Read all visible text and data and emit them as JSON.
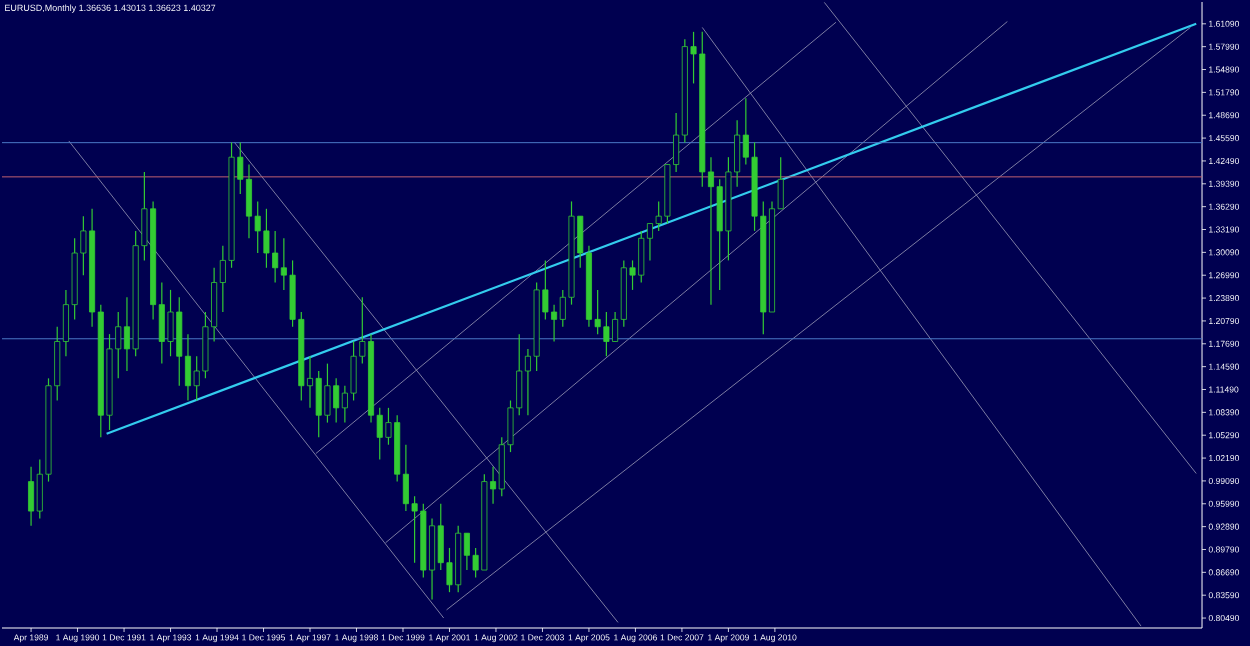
{
  "chart_data": {
    "type": "candlestick",
    "title": "EURUSD,Monthly  1.36636 1.43013 1.36623 1.40327",
    "color": "#33cc33",
    "x": [
      "1989-04",
      "1989-07",
      "1989-10",
      "1990-01",
      "1990-04",
      "1990-07",
      "1990-10",
      "1991-01",
      "1991-04",
      "1991-07",
      "1991-10",
      "1992-01",
      "1992-04",
      "1992-07",
      "1992-10",
      "1993-01",
      "1993-04",
      "1993-07",
      "1993-10",
      "1994-01",
      "1994-04",
      "1994-07",
      "1994-10",
      "1995-01",
      "1995-04",
      "1995-07",
      "1995-10",
      "1996-01",
      "1996-04",
      "1996-07",
      "1996-10",
      "1997-01",
      "1997-04",
      "1997-07",
      "1997-10",
      "1998-01",
      "1998-04",
      "1998-07",
      "1998-10",
      "1999-01",
      "1999-04",
      "1999-07",
      "1999-10",
      "2000-01",
      "2000-04",
      "2000-07",
      "2000-10",
      "2001-01",
      "2001-04",
      "2001-07",
      "2001-10",
      "2002-01",
      "2002-04",
      "2002-07",
      "2002-10",
      "2003-01",
      "2003-04",
      "2003-07",
      "2003-10",
      "2004-01",
      "2004-04",
      "2004-07",
      "2004-10",
      "2005-01",
      "2005-04",
      "2005-07",
      "2005-10",
      "2006-01",
      "2006-04",
      "2006-07",
      "2006-10",
      "2007-01",
      "2007-04",
      "2007-07",
      "2007-10",
      "2008-01",
      "2008-04",
      "2008-07",
      "2008-10",
      "2009-01",
      "2009-04",
      "2009-07",
      "2009-10",
      "2010-01",
      "2010-04",
      "2010-07",
      "2010-10"
    ],
    "ohlc": [
      [
        0.99,
        1.01,
        0.93,
        0.95
      ],
      [
        0.95,
        1.02,
        0.94,
        1.0
      ],
      [
        1.0,
        1.13,
        0.99,
        1.12
      ],
      [
        1.12,
        1.2,
        1.1,
        1.18
      ],
      [
        1.18,
        1.25,
        1.16,
        1.23
      ],
      [
        1.23,
        1.32,
        1.21,
        1.3
      ],
      [
        1.3,
        1.35,
        1.27,
        1.33
      ],
      [
        1.33,
        1.36,
        1.2,
        1.22
      ],
      [
        1.22,
        1.23,
        1.05,
        1.08
      ],
      [
        1.08,
        1.19,
        1.06,
        1.17
      ],
      [
        1.17,
        1.22,
        1.13,
        1.2
      ],
      [
        1.2,
        1.24,
        1.14,
        1.17
      ],
      [
        1.17,
        1.33,
        1.16,
        1.31
      ],
      [
        1.31,
        1.41,
        1.29,
        1.36
      ],
      [
        1.36,
        1.37,
        1.21,
        1.23
      ],
      [
        1.23,
        1.26,
        1.15,
        1.18
      ],
      [
        1.18,
        1.25,
        1.16,
        1.22
      ],
      [
        1.22,
        1.24,
        1.12,
        1.16
      ],
      [
        1.16,
        1.19,
        1.1,
        1.12
      ],
      [
        1.12,
        1.16,
        1.1,
        1.14
      ],
      [
        1.14,
        1.22,
        1.13,
        1.2
      ],
      [
        1.2,
        1.28,
        1.18,
        1.26
      ],
      [
        1.26,
        1.31,
        1.22,
        1.29
      ],
      [
        1.29,
        1.45,
        1.28,
        1.43
      ],
      [
        1.43,
        1.45,
        1.38,
        1.4
      ],
      [
        1.4,
        1.42,
        1.32,
        1.35
      ],
      [
        1.35,
        1.37,
        1.3,
        1.33
      ],
      [
        1.33,
        1.36,
        1.28,
        1.3
      ],
      [
        1.3,
        1.33,
        1.26,
        1.28
      ],
      [
        1.28,
        1.32,
        1.25,
        1.27
      ],
      [
        1.27,
        1.29,
        1.2,
        1.21
      ],
      [
        1.21,
        1.22,
        1.1,
        1.12
      ],
      [
        1.12,
        1.16,
        1.09,
        1.13
      ],
      [
        1.13,
        1.14,
        1.05,
        1.08
      ],
      [
        1.08,
        1.15,
        1.07,
        1.12
      ],
      [
        1.12,
        1.13,
        1.07,
        1.09
      ],
      [
        1.09,
        1.12,
        1.07,
        1.11
      ],
      [
        1.11,
        1.18,
        1.1,
        1.16
      ],
      [
        1.16,
        1.24,
        1.15,
        1.18
      ],
      [
        1.18,
        1.19,
        1.07,
        1.08
      ],
      [
        1.08,
        1.09,
        1.02,
        1.05
      ],
      [
        1.05,
        1.09,
        1.04,
        1.07
      ],
      [
        1.07,
        1.08,
        0.99,
        1.0
      ],
      [
        1.0,
        1.04,
        0.95,
        0.96
      ],
      [
        0.96,
        0.97,
        0.88,
        0.95
      ],
      [
        0.95,
        0.96,
        0.86,
        0.87
      ],
      [
        0.87,
        0.94,
        0.83,
        0.93
      ],
      [
        0.93,
        0.96,
        0.87,
        0.88
      ],
      [
        0.88,
        0.9,
        0.84,
        0.85
      ],
      [
        0.85,
        0.93,
        0.84,
        0.92
      ],
      [
        0.92,
        0.92,
        0.87,
        0.89
      ],
      [
        0.89,
        0.9,
        0.86,
        0.87
      ],
      [
        0.87,
        1.0,
        0.87,
        0.99
      ],
      [
        0.99,
        1.01,
        0.96,
        0.98
      ],
      [
        0.98,
        1.05,
        0.97,
        1.04
      ],
      [
        1.04,
        1.1,
        1.03,
        1.09
      ],
      [
        1.09,
        1.19,
        1.08,
        1.14
      ],
      [
        1.14,
        1.17,
        1.08,
        1.16
      ],
      [
        1.16,
        1.26,
        1.14,
        1.25
      ],
      [
        1.25,
        1.29,
        1.21,
        1.22
      ],
      [
        1.22,
        1.23,
        1.18,
        1.21
      ],
      [
        1.21,
        1.25,
        1.2,
        1.24
      ],
      [
        1.24,
        1.37,
        1.23,
        1.35
      ],
      [
        1.35,
        1.35,
        1.28,
        1.3
      ],
      [
        1.3,
        1.31,
        1.2,
        1.21
      ],
      [
        1.21,
        1.25,
        1.19,
        1.2
      ],
      [
        1.2,
        1.22,
        1.16,
        1.18
      ],
      [
        1.18,
        1.22,
        1.18,
        1.21
      ],
      [
        1.21,
        1.29,
        1.2,
        1.28
      ],
      [
        1.28,
        1.29,
        1.25,
        1.27
      ],
      [
        1.27,
        1.33,
        1.26,
        1.32
      ],
      [
        1.32,
        1.34,
        1.29,
        1.34
      ],
      [
        1.34,
        1.37,
        1.33,
        1.35
      ],
      [
        1.35,
        1.42,
        1.34,
        1.42
      ],
      [
        1.42,
        1.49,
        1.41,
        1.46
      ],
      [
        1.46,
        1.59,
        1.45,
        1.58
      ],
      [
        1.58,
        1.6,
        1.53,
        1.57
      ],
      [
        1.57,
        1.6,
        1.39,
        1.41
      ],
      [
        1.41,
        1.43,
        1.23,
        1.39
      ],
      [
        1.39,
        1.4,
        1.25,
        1.33
      ],
      [
        1.33,
        1.43,
        1.29,
        1.41
      ],
      [
        1.41,
        1.48,
        1.39,
        1.46
      ],
      [
        1.46,
        1.51,
        1.42,
        1.43
      ],
      [
        1.43,
        1.45,
        1.33,
        1.35
      ],
      [
        1.35,
        1.37,
        1.19,
        1.22
      ],
      [
        1.22,
        1.37,
        1.22,
        1.36
      ],
      [
        1.36,
        1.43,
        1.36,
        1.4
      ]
    ],
    "series": [
      {
        "type": "line",
        "color": "#9a9ab8",
        "x": [
          "1990-05",
          "2001-02"
        ],
        "values": [
          1.452,
          0.805
        ]
      },
      {
        "type": "line",
        "color": "#9a9ab8",
        "x": [
          "1995-02",
          "2006-02"
        ],
        "values": [
          1.45,
          0.799
        ]
      },
      {
        "type": "line",
        "color": "#9a9ab8",
        "x": [
          "2008-07",
          "2021-02"
        ],
        "values": [
          1.606,
          0.794
        ]
      },
      {
        "type": "line",
        "color": "#9a9ab8",
        "x": [
          "2012-01",
          "2022-09"
        ],
        "values": [
          1.64,
          1.001
        ]
      },
      {
        "type": "line",
        "color": "#9a9ab8",
        "x": [
          "1997-06",
          "2012-05"
        ],
        "values": [
          1.028,
          1.613
        ]
      },
      {
        "type": "line",
        "color": "#9a9ab8",
        "x": [
          "1999-06",
          "2017-04"
        ],
        "values": [
          0.907,
          1.614
        ]
      },
      {
        "type": "line",
        "color": "#9a9ab8",
        "x": [
          "2001-03",
          "2022-07"
        ],
        "values": [
          0.816,
          1.606
        ]
      },
      {
        "type": "line",
        "color": "#33ccee",
        "x": [
          "1991-06",
          "2022-09"
        ],
        "values": [
          1.055,
          1.611
        ]
      }
    ],
    "ref_lines": [
      {
        "axis": "y",
        "value": 1.4497,
        "color": "#4a78c8"
      },
      {
        "axis": "y",
        "value": 1.4033,
        "color": "#c06070"
      },
      {
        "axis": "y",
        "value": 1.1837,
        "color": "#4a78c8"
      }
    ],
    "xlim": [
      "1988-06",
      "2022-11"
    ],
    "xticks": [
      {
        "value": "1989-04",
        "label": "Apr 1989"
      },
      {
        "value": "1990-08",
        "label": "1 Aug 1990"
      },
      {
        "value": "1991-12",
        "label": "1 Dec 1991"
      },
      {
        "value": "1993-04",
        "label": "1 Apr 1993"
      },
      {
        "value": "1994-08",
        "label": "1 Aug 1994"
      },
      {
        "value": "1995-12",
        "label": "1 Dec 1995"
      },
      {
        "value": "1997-04",
        "label": "1 Apr 1997"
      },
      {
        "value": "1998-08",
        "label": "1 Aug 1998"
      },
      {
        "value": "1999-12",
        "label": "1 Dec 1999"
      },
      {
        "value": "2001-04",
        "label": "1 Apr 2001"
      },
      {
        "value": "2002-08",
        "label": "1 Aug 2002"
      },
      {
        "value": "2003-12",
        "label": "1 Dec 2003"
      },
      {
        "value": "2005-04",
        "label": "1 Apr 2005"
      },
      {
        "value": "2006-08",
        "label": "1 Aug 2006"
      },
      {
        "value": "2007-12",
        "label": "1 Dec 2007"
      },
      {
        "value": "2009-04",
        "label": "1 Apr 2009"
      },
      {
        "value": "2010-08",
        "label": "1 Aug 2010"
      }
    ],
    "ylim": [
      0.7914,
      1.6405
    ],
    "yticks": [
      {
        "value": 0.8049,
        "label": "0.80490"
      },
      {
        "value": 0.8359,
        "label": "0.83590"
      },
      {
        "value": 0.8669,
        "label": "0.86690"
      },
      {
        "value": 0.8979,
        "label": "0.89790"
      },
      {
        "value": 0.9289,
        "label": "0.92890"
      },
      {
        "value": 0.9599,
        "label": "0.95990"
      },
      {
        "value": 0.9909,
        "label": "0.99090"
      },
      {
        "value": 1.0219,
        "label": "1.02190"
      },
      {
        "value": 1.0529,
        "label": "1.05290"
      },
      {
        "value": 1.0839,
        "label": "1.08390"
      },
      {
        "value": 1.1149,
        "label": "1.11490"
      },
      {
        "value": 1.1459,
        "label": "1.14590"
      },
      {
        "value": 1.1769,
        "label": "1.17690"
      },
      {
        "value": 1.2079,
        "label": "1.20790"
      },
      {
        "value": 1.2389,
        "label": "1.23890"
      },
      {
        "value": 1.2699,
        "label": "1.26990"
      },
      {
        "value": 1.3009,
        "label": "1.30090"
      },
      {
        "value": 1.3319,
        "label": "1.33190"
      },
      {
        "value": 1.3629,
        "label": "1.36290"
      },
      {
        "value": 1.3939,
        "label": "1.39390"
      },
      {
        "value": 1.4249,
        "label": "1.42490"
      },
      {
        "value": 1.4559,
        "label": "1.45590"
      },
      {
        "value": 1.4869,
        "label": "1.48690"
      },
      {
        "value": 1.5179,
        "label": "1.51790"
      },
      {
        "value": 1.5489,
        "label": "1.54890"
      },
      {
        "value": 1.5799,
        "label": "1.57990"
      },
      {
        "value": 1.6109,
        "label": "1.61090"
      }
    ]
  }
}
